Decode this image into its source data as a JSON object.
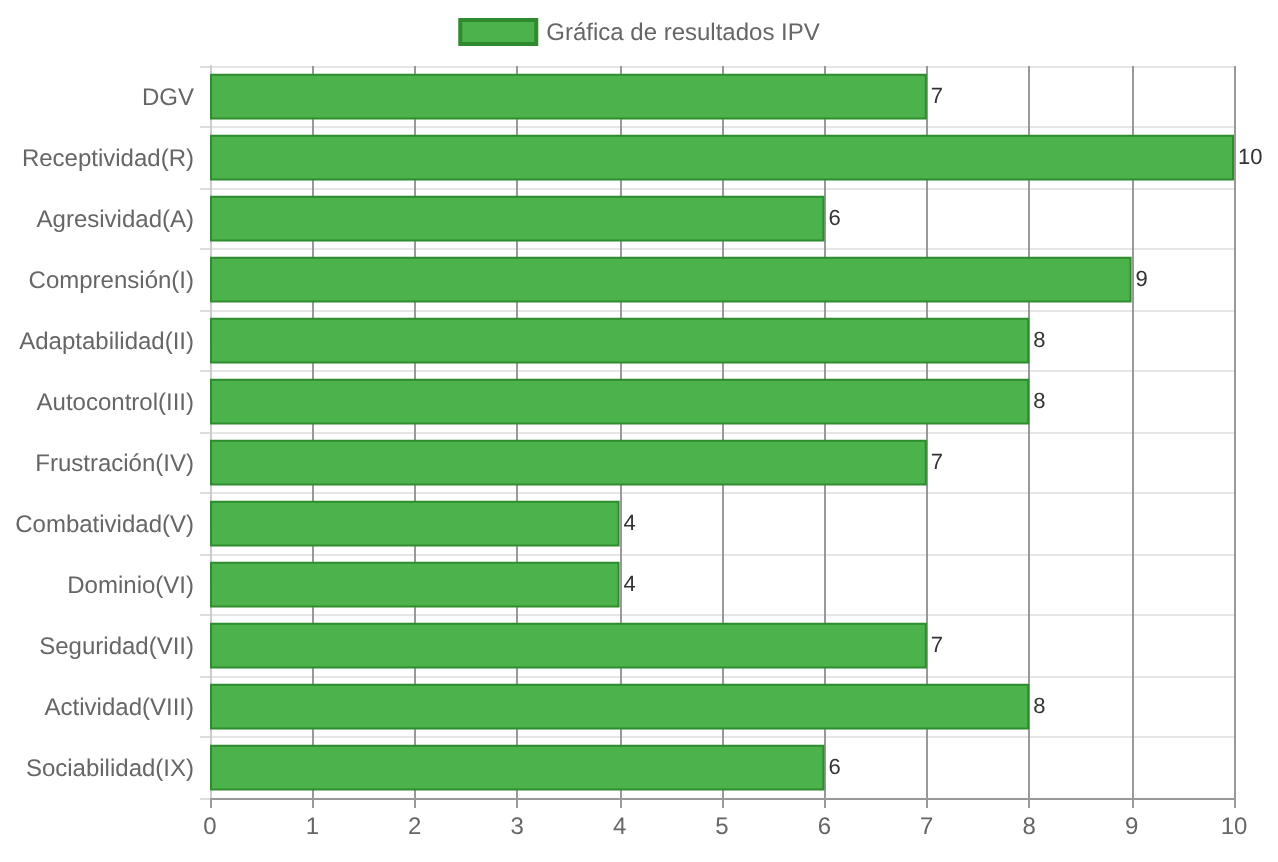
{
  "chart_data": {
    "type": "bar",
    "orientation": "horizontal",
    "categories": [
      "DGV",
      "Receptividad(R)",
      "Agresividad(A)",
      "Comprensión(I)",
      "Adaptabilidad(II)",
      "Autocontrol(III)",
      "Frustración(IV)",
      "Combatividad(V)",
      "Dominio(VI)",
      "Seguridad(VII)",
      "Actividad(VIII)",
      "Sociabilidad(IX)"
    ],
    "series": [
      {
        "name": "Gráfica de resultados IPV",
        "color": "#4cb34c",
        "values": [
          7,
          10,
          6,
          9,
          8,
          8,
          7,
          4,
          4,
          7,
          8,
          6
        ]
      }
    ],
    "xlim": [
      0,
      10
    ],
    "xticks": [
      0,
      1,
      2,
      3,
      4,
      5,
      6,
      7,
      8,
      9,
      10
    ],
    "grid": true,
    "legend": "top",
    "data_labels": true
  }
}
